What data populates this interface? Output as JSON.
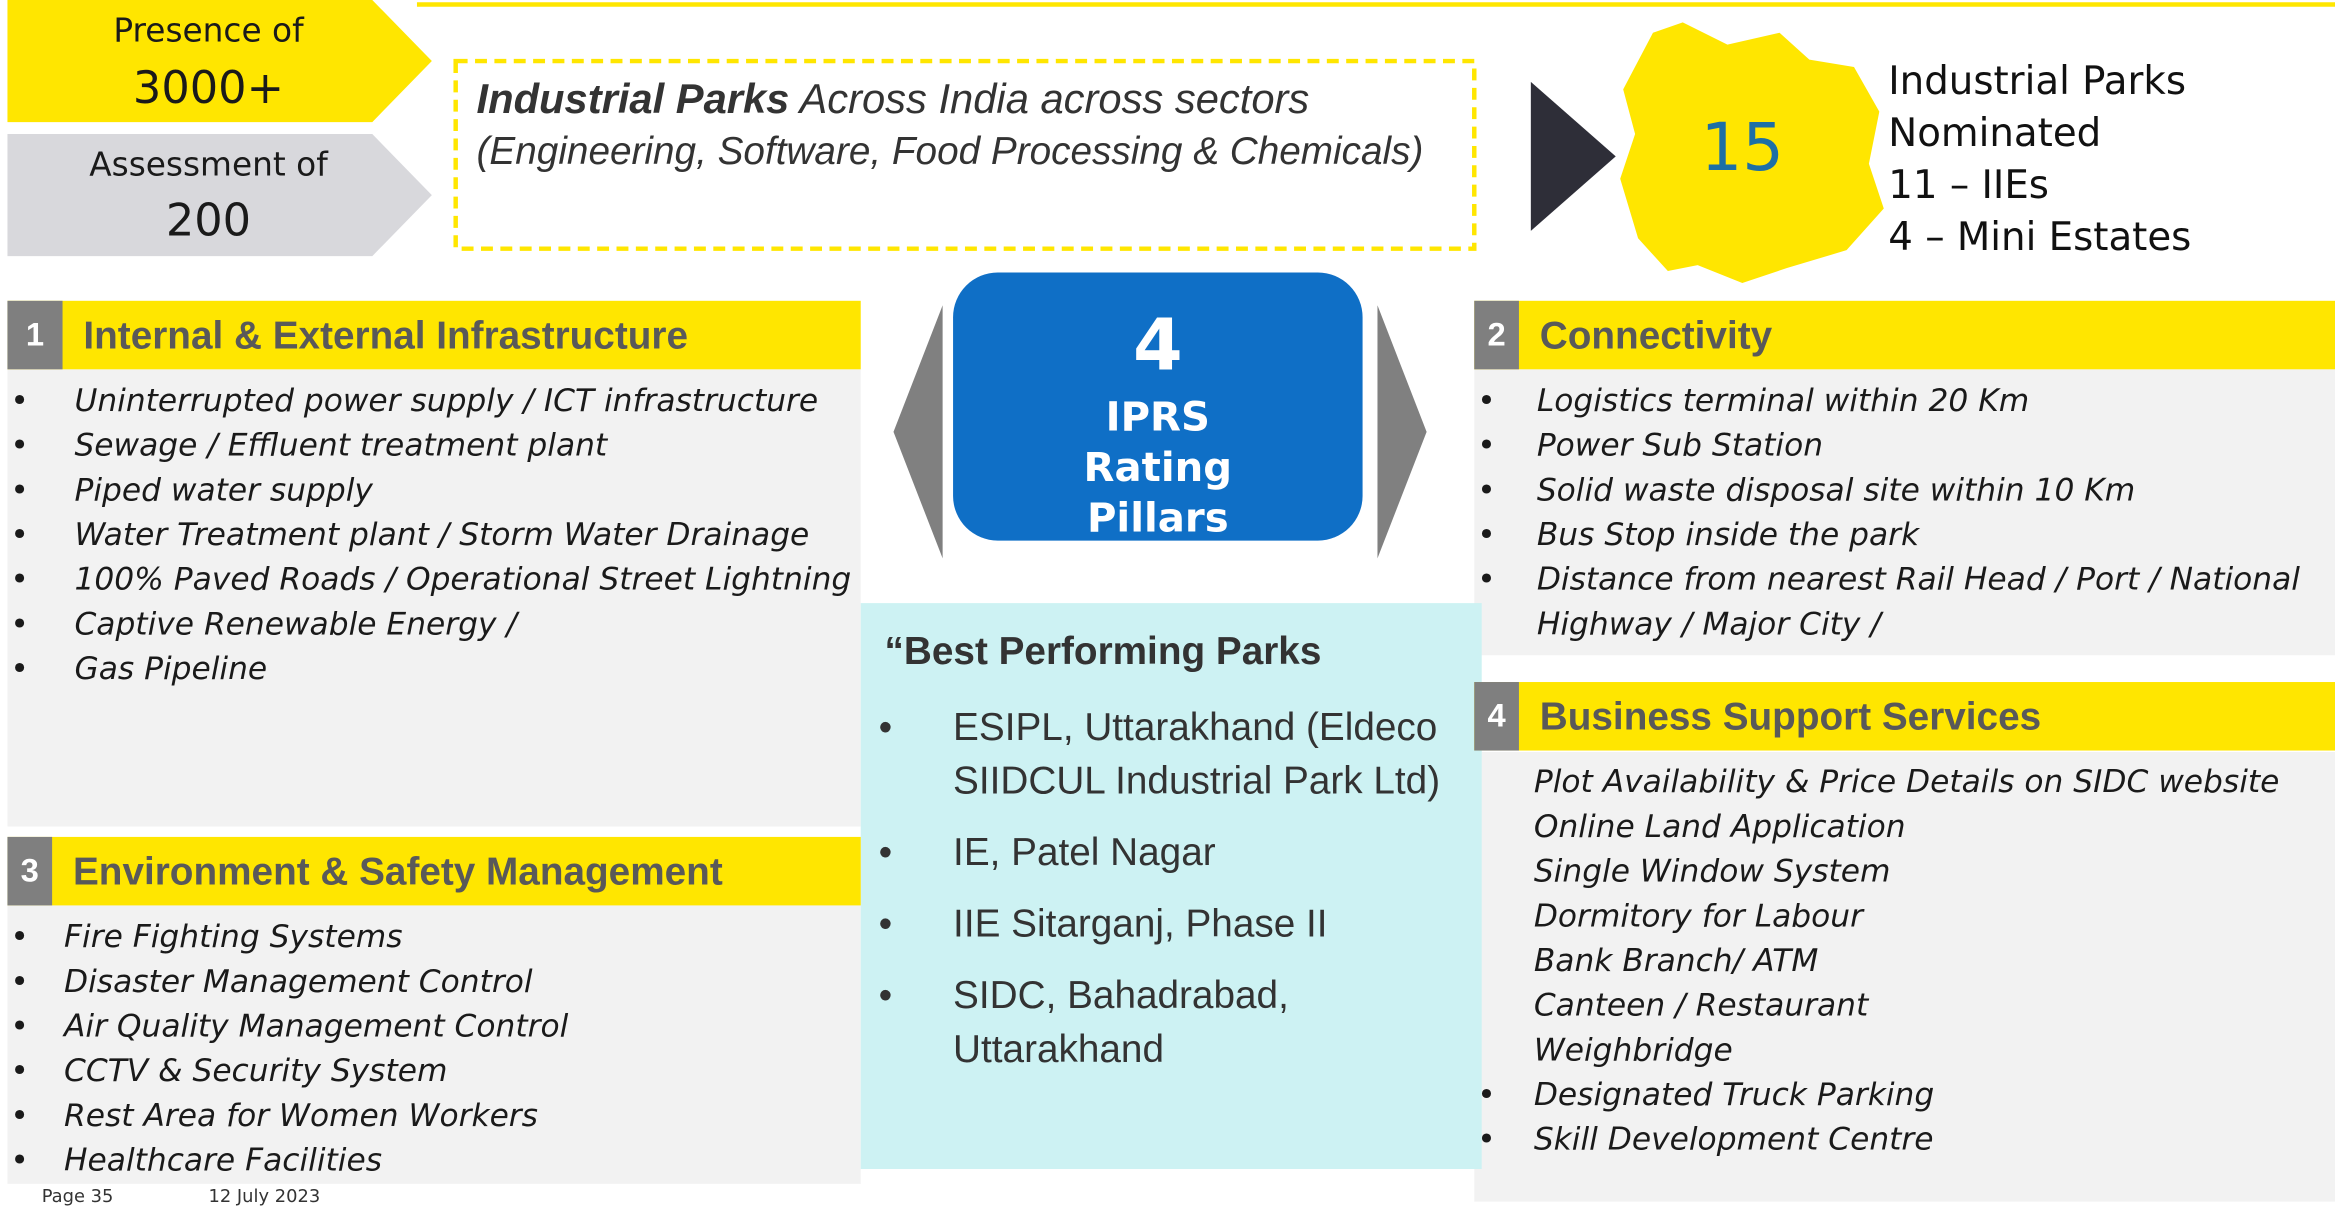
{
  "header": {
    "presence_label": "Presence of",
    "presence_value": "3000+",
    "assessment_label": "Assessment of",
    "assessment_value": "200",
    "parks_title": "Industrial Parks",
    "parks_text": "Across India across sectors",
    "parks_sectors": "(Engineering, Software, Food Processing & Chemicals)"
  },
  "nominated": {
    "count": "15",
    "lines": [
      "Industrial Parks",
      "Nominated",
      "11 – IIEs",
      "4 – Mini Estates"
    ]
  },
  "center": {
    "number": "4",
    "label": "IPRS Rating Pillars"
  },
  "pillars": [
    {
      "number": "1",
      "title": "Internal & External Infrastructure",
      "items": [
        "Uninterrupted power supply / ICT infrastructure",
        "Sewage / Effluent treatment plant",
        "Piped water supply",
        "Water Treatment plant / Storm Water Drainage",
        "100% Paved Roads /  Operational Street Lightning",
        "Captive Renewable Energy /",
        "Gas Pipeline"
      ]
    },
    {
      "number": "2",
      "title": "Connectivity",
      "items": [
        "Logistics terminal within 20 Km",
        "Power Sub Station",
        "Solid waste disposal site within 10 Km",
        "Bus Stop inside the park",
        "Distance from nearest Rail Head / Port / National Highway / Major City /"
      ]
    },
    {
      "number": "3",
      "title": "Environment & Safety Management",
      "items": [
        "Fire Fighting Systems",
        "Disaster Management Control",
        "Air Quality Management Control",
        "CCTV & Security System",
        "Rest Area for Women Workers",
        "Healthcare Facilities"
      ]
    },
    {
      "number": "4",
      "title": "Business Support Services",
      "items": [
        "Plot Availability & Price Details on SIDC website",
        "Online Land Application",
        "Single Window System",
        "Dormitory for Labour",
        "Bank Branch/ ATM",
        "Canteen / Restaurant",
        "Weighbridge",
        "Designated Truck Parking",
        "Skill Development Centre"
      ]
    }
  ],
  "best": {
    "title": "“Best Performing Parks",
    "items": [
      "ESIPL, Uttarakhand (Eldeco SIIDCUL Industrial Park Ltd)",
      "IE, Patel Nagar",
      "IIE Sitarganj, Phase II",
      "SIDC, Bahadrabad, Uttarakhand"
    ]
  },
  "footer": {
    "page": "Page 35",
    "date": "12 July 2023"
  }
}
